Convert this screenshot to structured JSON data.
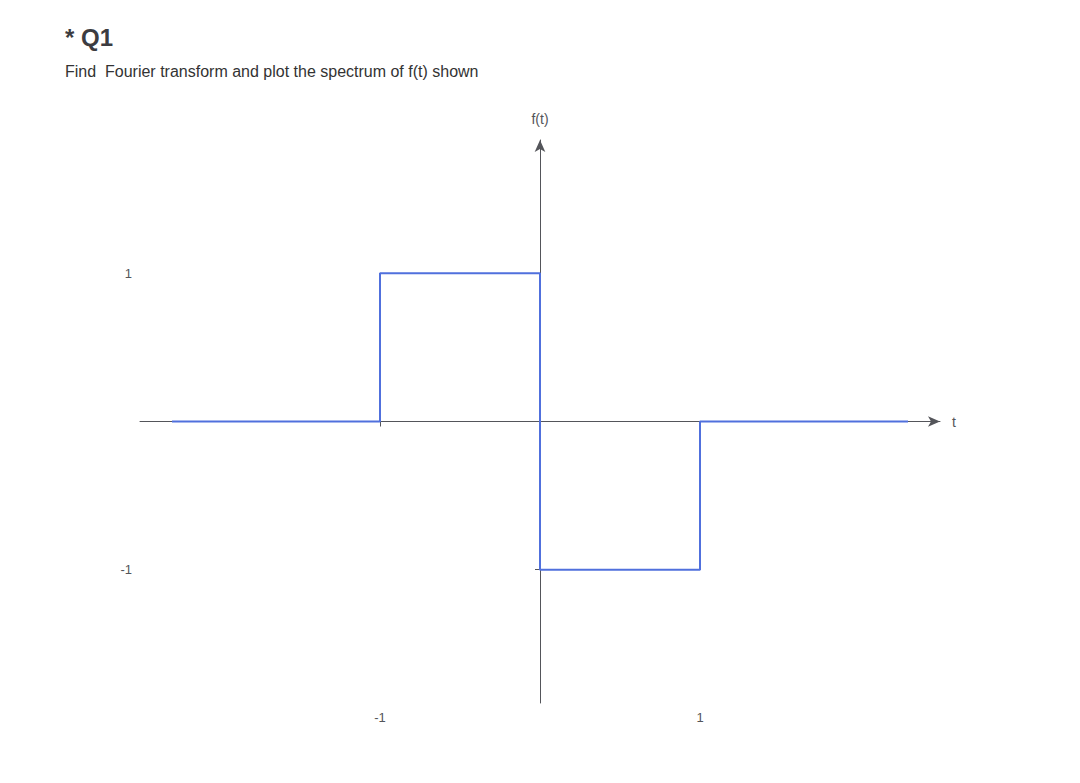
{
  "chart_data": {
    "type": "line",
    "title": "* Q1",
    "subtitle": "Find  Fourier transform and plot the spectrum of f(t) shown",
    "xlabel": "t",
    "ylabel": "f(t)",
    "x": [
      -2.3,
      -1.0,
      -1.0,
      0.0,
      0.0,
      1.0,
      1.0,
      2.3
    ],
    "values": [
      0.0,
      0.0,
      1.0,
      1.0,
      -1.0,
      -1.0,
      0.0,
      0.0
    ],
    "xlim": [
      -2.5,
      2.5
    ],
    "ylim": [
      -1.9,
      1.9
    ],
    "xticks": [
      -1,
      1
    ],
    "yticks": [
      -1,
      1
    ],
    "grid": false
  }
}
